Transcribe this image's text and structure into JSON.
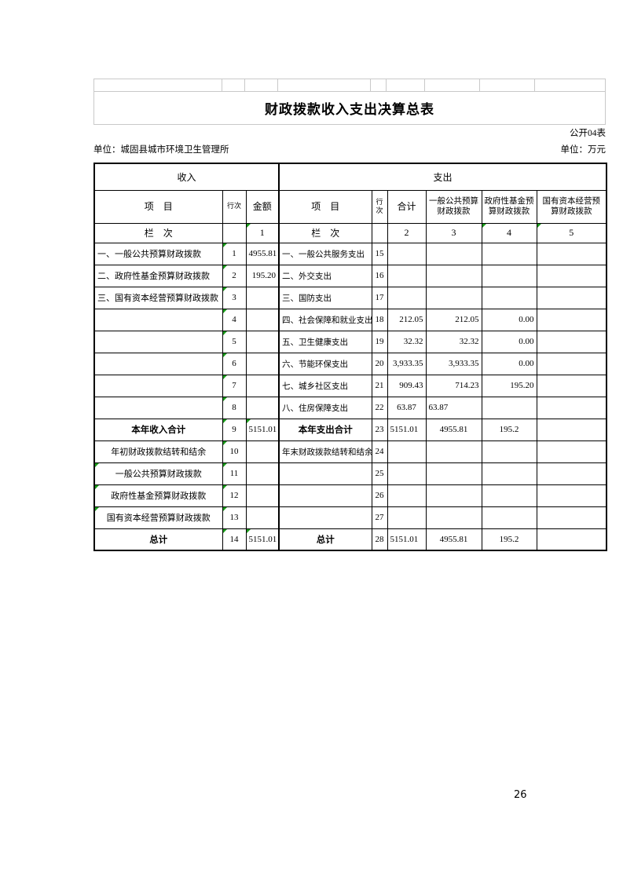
{
  "page": {
    "number": "26"
  },
  "doc": {
    "title": "财政拨款收入支出决算总表",
    "form_code": "公开04表",
    "unit_left": "单位：城固县城市环境卫生管理所",
    "unit_right": "单位：万元"
  },
  "table": {
    "income_section": "收入",
    "expense_section": "支出",
    "headers": {
      "item": "项　目",
      "line_no": "行次",
      "amount": "金额",
      "total": "合计",
      "general_budget": "一般公共预算财政拨款",
      "gov_fund": "政府性基金预算财政拨款",
      "state_capital": "国有资本经营预算财政拨款"
    },
    "lanci": {
      "label": "栏　次",
      "amount_no": "1",
      "total_no": "2",
      "general_no": "3",
      "fund_no": "4",
      "capital_no": "5"
    },
    "rows": [
      {
        "cls": "",
        "cells": [
          {
            "t": "一、一般公共预算财政拨款",
            "a": "l"
          },
          {
            "t": "1",
            "gt": true
          },
          {
            "t": "4955.81",
            "a": "r"
          },
          {
            "t": "一、一般公共服务支出",
            "a": "l"
          },
          {
            "t": "15"
          },
          {},
          {},
          {},
          {}
        ]
      },
      {
        "cls": "",
        "cells": [
          {
            "t": "二、政府性基金预算财政拨款",
            "a": "l"
          },
          {
            "t": "2",
            "gt": true
          },
          {
            "t": "195.20",
            "a": "r"
          },
          {
            "t": "二、外交支出",
            "a": "l"
          },
          {
            "t": "16"
          },
          {},
          {},
          {},
          {}
        ]
      },
      {
        "cls": "",
        "cells": [
          {
            "t": "三、国有资本经营预算财政拨款",
            "a": "l"
          },
          {
            "t": "3",
            "gt": true
          },
          {},
          {
            "t": "三、国防支出",
            "a": "l"
          },
          {
            "t": "17"
          },
          {},
          {},
          {},
          {}
        ]
      },
      {
        "cls": "",
        "cells": [
          {},
          {
            "t": "4",
            "gt": true
          },
          {},
          {
            "t": "四、社会保障和就业支出",
            "a": "l"
          },
          {
            "t": "18"
          },
          {
            "t": "212.05",
            "a": "r"
          },
          {
            "t": "212.05",
            "a": "r"
          },
          {
            "t": "0.00",
            "a": "r"
          },
          {}
        ]
      },
      {
        "cls": "",
        "cells": [
          {},
          {
            "t": "5",
            "gt": true
          },
          {},
          {
            "t": "五、卫生健康支出",
            "a": "l"
          },
          {
            "t": "19"
          },
          {
            "t": "32.32",
            "a": "r"
          },
          {
            "t": "32.32",
            "a": "r"
          },
          {
            "t": "0.00",
            "a": "r"
          },
          {}
        ]
      },
      {
        "cls": "",
        "cells": [
          {},
          {
            "t": "6",
            "gt": true
          },
          {},
          {
            "t": "六、节能环保支出",
            "a": "l"
          },
          {
            "t": "20"
          },
          {
            "t": "3,933.35",
            "a": "r"
          },
          {
            "t": "3,933.35",
            "a": "r"
          },
          {
            "t": "0.00",
            "a": "r"
          },
          {}
        ]
      },
      {
        "cls": "",
        "cells": [
          {},
          {
            "t": "7",
            "gt": true
          },
          {},
          {
            "t": "七、城乡社区支出",
            "a": "l"
          },
          {
            "t": "21"
          },
          {
            "t": "909.43",
            "a": "r"
          },
          {
            "t": "714.23",
            "a": "r"
          },
          {
            "t": "195.20",
            "a": "r"
          },
          {}
        ]
      },
      {
        "cls": "",
        "cells": [
          {},
          {
            "t": "8",
            "gt": true
          },
          {},
          {
            "t": "八、住房保障支出",
            "a": "l"
          },
          {
            "t": "22"
          },
          {
            "t": "63.87"
          },
          {
            "t": "63.87",
            "a": "l"
          },
          {},
          {}
        ]
      },
      {
        "cls": "total-row",
        "cells": [
          {
            "t": "本年收入合计",
            "b": true
          },
          {
            "t": "9",
            "gt": true
          },
          {
            "t": "5151.01",
            "a": "l",
            "gt": true
          },
          {
            "t": "本年支出合计",
            "b": true
          },
          {
            "t": "23"
          },
          {
            "t": "5151.01",
            "a": "l"
          },
          {
            "t": "4955.81"
          },
          {
            "t": "195.2"
          },
          {}
        ]
      },
      {
        "cls": "",
        "cells": [
          {
            "t": "年初财政拨款结转和结余"
          },
          {
            "t": "10",
            "gt": true
          },
          {},
          {
            "t": "年末财政拨款结转和结余"
          },
          {
            "t": "24"
          },
          {},
          {},
          {},
          {}
        ]
      },
      {
        "cls": "",
        "cells": [
          {
            "t": "一般公共预算财政拨款",
            "gt": true
          },
          {
            "t": "11",
            "gt": true
          },
          {},
          {},
          {
            "t": "25"
          },
          {},
          {},
          {},
          {}
        ]
      },
      {
        "cls": "",
        "cells": [
          {
            "t": "政府性基金预算财政拨款",
            "gt": true
          },
          {
            "t": "12",
            "gt": true
          },
          {},
          {},
          {
            "t": "26"
          },
          {},
          {},
          {},
          {}
        ]
      },
      {
        "cls": "",
        "cells": [
          {
            "t": "国有资本经营预算财政拨款",
            "gt": true
          },
          {
            "t": "13",
            "gt": true
          },
          {},
          {},
          {
            "t": "27"
          },
          {},
          {},
          {},
          {}
        ]
      },
      {
        "cls": "grand-total-row",
        "cells": [
          {
            "t": "总计",
            "b": true
          },
          {
            "t": "14",
            "gt": true
          },
          {
            "t": "5151.01",
            "a": "l",
            "gt": true
          },
          {
            "t": "总计",
            "b": true
          },
          {
            "t": "28"
          },
          {
            "t": "5151.01",
            "a": "l"
          },
          {
            "t": "4955.81"
          },
          {
            "t": "195.2"
          },
          {}
        ]
      }
    ]
  }
}
